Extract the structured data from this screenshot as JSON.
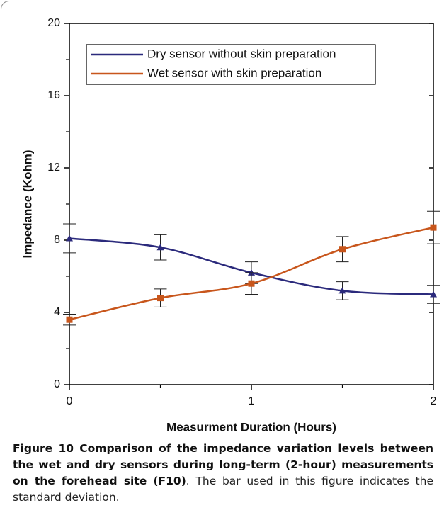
{
  "chart_data": {
    "type": "line",
    "xlabel": "Measurment Duration (Hours)",
    "ylabel": "Impedance (Kohm)",
    "x": [
      0,
      0.5,
      1,
      1.5,
      2
    ],
    "series": [
      {
        "name": "Dry sensor without skin preparation",
        "color": "#2b2a7c",
        "marker": "triangle",
        "values": [
          8.1,
          7.6,
          6.2,
          5.2,
          5.0
        ],
        "errors": [
          0.8,
          0.7,
          0.6,
          0.5,
          0.5
        ]
      },
      {
        "name": "Wet sensor with skin preparation",
        "color": "#c8561c",
        "marker": "square",
        "values": [
          3.6,
          4.8,
          5.6,
          7.5,
          8.7
        ],
        "errors": [
          0.3,
          0.5,
          0.6,
          0.7,
          0.9
        ]
      }
    ],
    "xlim": [
      0,
      2
    ],
    "xticks": [
      0,
      1,
      2
    ],
    "ylim": [
      0,
      20
    ],
    "yticks": [
      0,
      4,
      8,
      12,
      16,
      20
    ],
    "legend": "upper left"
  },
  "caption": {
    "bold": "Figure 10 Comparison of the impedance variation levels between the wet and dry sensors during long-term (2-hour) measurements on the forehead site (F10)",
    "text": ". The bar used in this figure indicates the standard deviation."
  }
}
